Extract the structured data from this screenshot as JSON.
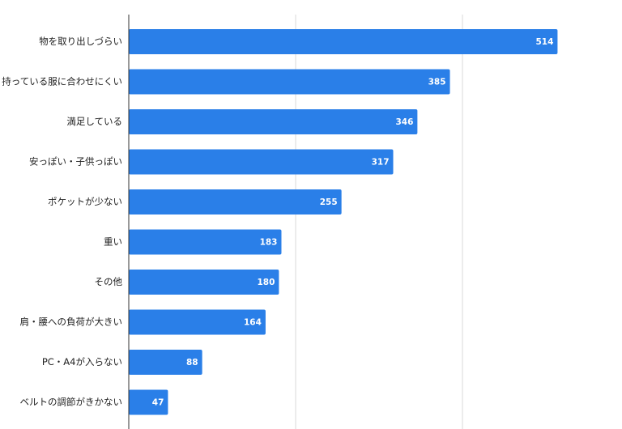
{
  "chart_data": {
    "type": "bar",
    "orientation": "horizontal",
    "categories": [
      "物を取り出しづらい",
      "持っている服に合わせにくい",
      "満足している",
      "安っぽい・子供っぽい",
      "ポケットが少ない",
      "重い",
      "その他",
      "肩・腰への負荷が大きい",
      "PC・A4が入らない",
      "ベルトの調節がきかない"
    ],
    "values": [
      514,
      385,
      346,
      317,
      255,
      183,
      180,
      164,
      88,
      47
    ],
    "data_labels": [
      "514",
      "385",
      "346",
      "317",
      "255",
      "183",
      "180",
      "164",
      "88",
      "47"
    ],
    "xlim": [
      0,
      600
    ],
    "gridlines": [
      0,
      200,
      400,
      600
    ],
    "grid": true,
    "legend": "none",
    "title": "",
    "xlabel": "",
    "ylabel": "",
    "bar_color": "#2a7fe8"
  }
}
